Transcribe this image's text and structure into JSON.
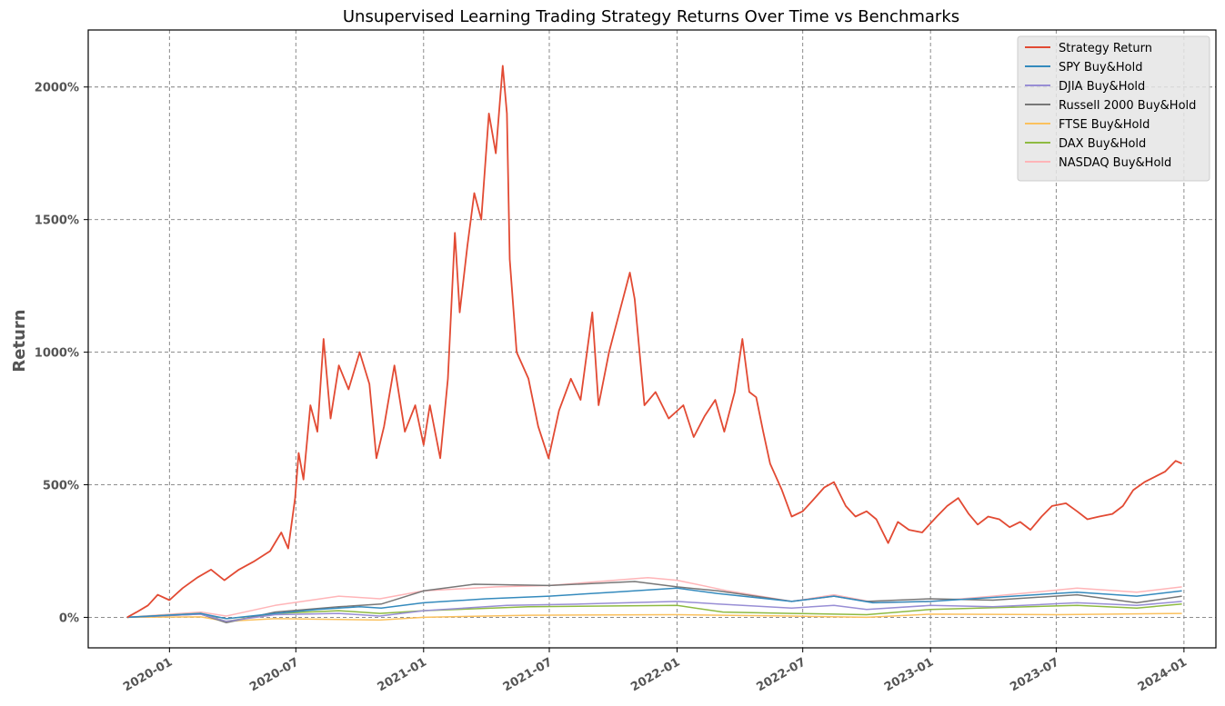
{
  "chart_data": {
    "type": "line",
    "title": "Unsupervised Learning Trading Strategy Returns Over Time vs Benchmarks",
    "xlabel": "",
    "ylabel": "Return",
    "xlim": [
      "2019-09-06",
      "2024-02-16"
    ],
    "ylim": [
      -115,
      2215
    ],
    "x_ticks": [
      "2020-01",
      "2020-07",
      "2021-01",
      "2021-07",
      "2022-01",
      "2022-07",
      "2023-01",
      "2023-07",
      "2024-01"
    ],
    "y_ticks": [
      0,
      500,
      1000,
      1500,
      2000
    ],
    "y_tick_labels": [
      "0%",
      "500%",
      "1000%",
      "1500%",
      "2000%"
    ],
    "grid": true,
    "legend_position": "top-right",
    "series": [
      {
        "name": "Strategy Return",
        "color": "#E24A33",
        "points": [
          [
            "2019-11-01",
            0
          ],
          [
            "2019-11-15",
            20
          ],
          [
            "2019-12-01",
            45
          ],
          [
            "2019-12-15",
            85
          ],
          [
            "2020-01-01",
            65
          ],
          [
            "2020-01-20",
            110
          ],
          [
            "2020-02-10",
            150
          ],
          [
            "2020-03-01",
            180
          ],
          [
            "2020-03-20",
            140
          ],
          [
            "2020-04-10",
            180
          ],
          [
            "2020-05-01",
            210
          ],
          [
            "2020-05-25",
            250
          ],
          [
            "2020-06-10",
            320
          ],
          [
            "2020-06-20",
            260
          ],
          [
            "2020-06-30",
            450
          ],
          [
            "2020-07-05",
            620
          ],
          [
            "2020-07-12",
            520
          ],
          [
            "2020-07-22",
            800
          ],
          [
            "2020-08-01",
            700
          ],
          [
            "2020-08-10",
            1050
          ],
          [
            "2020-08-20",
            750
          ],
          [
            "2020-09-01",
            950
          ],
          [
            "2020-09-15",
            860
          ],
          [
            "2020-10-01",
            1000
          ],
          [
            "2020-10-15",
            880
          ],
          [
            "2020-10-25",
            600
          ],
          [
            "2020-11-05",
            720
          ],
          [
            "2020-11-20",
            950
          ],
          [
            "2020-12-05",
            700
          ],
          [
            "2020-12-20",
            800
          ],
          [
            "2021-01-01",
            650
          ],
          [
            "2021-01-10",
            800
          ],
          [
            "2021-01-25",
            600
          ],
          [
            "2021-02-05",
            900
          ],
          [
            "2021-02-15",
            1450
          ],
          [
            "2021-02-22",
            1150
          ],
          [
            "2021-03-05",
            1400
          ],
          [
            "2021-03-15",
            1600
          ],
          [
            "2021-03-25",
            1500
          ],
          [
            "2021-04-05",
            1900
          ],
          [
            "2021-04-15",
            1750
          ],
          [
            "2021-04-25",
            2080
          ],
          [
            "2021-05-01",
            1900
          ],
          [
            "2021-05-05",
            1350
          ],
          [
            "2021-05-15",
            1000
          ],
          [
            "2021-06-01",
            900
          ],
          [
            "2021-06-15",
            720
          ],
          [
            "2021-06-30",
            600
          ],
          [
            "2021-07-15",
            780
          ],
          [
            "2021-08-01",
            900
          ],
          [
            "2021-08-15",
            820
          ],
          [
            "2021-09-01",
            1150
          ],
          [
            "2021-09-10",
            800
          ],
          [
            "2021-09-25",
            1000
          ],
          [
            "2021-10-10",
            1150
          ],
          [
            "2021-10-25",
            1300
          ],
          [
            "2021-11-01",
            1200
          ],
          [
            "2021-11-15",
            800
          ],
          [
            "2021-12-01",
            850
          ],
          [
            "2021-12-20",
            750
          ],
          [
            "2022-01-10",
            800
          ],
          [
            "2022-01-25",
            680
          ],
          [
            "2022-02-10",
            760
          ],
          [
            "2022-02-25",
            820
          ],
          [
            "2022-03-10",
            700
          ],
          [
            "2022-03-25",
            850
          ],
          [
            "2022-04-05",
            1050
          ],
          [
            "2022-04-15",
            850
          ],
          [
            "2022-04-25",
            830
          ],
          [
            "2022-05-05",
            700
          ],
          [
            "2022-05-15",
            580
          ],
          [
            "2022-06-01",
            480
          ],
          [
            "2022-06-15",
            380
          ],
          [
            "2022-07-01",
            400
          ],
          [
            "2022-07-15",
            440
          ],
          [
            "2022-08-01",
            490
          ],
          [
            "2022-08-15",
            510
          ],
          [
            "2022-09-01",
            420
          ],
          [
            "2022-09-15",
            380
          ],
          [
            "2022-10-01",
            400
          ],
          [
            "2022-10-15",
            370
          ],
          [
            "2022-11-01",
            280
          ],
          [
            "2022-11-15",
            360
          ],
          [
            "2022-12-01",
            330
          ],
          [
            "2022-12-20",
            320
          ],
          [
            "2023-01-10",
            380
          ],
          [
            "2023-01-25",
            420
          ],
          [
            "2023-02-10",
            450
          ],
          [
            "2023-02-25",
            390
          ],
          [
            "2023-03-10",
            350
          ],
          [
            "2023-03-25",
            380
          ],
          [
            "2023-04-10",
            370
          ],
          [
            "2023-04-25",
            340
          ],
          [
            "2023-05-10",
            360
          ],
          [
            "2023-05-25",
            330
          ],
          [
            "2023-06-10",
            380
          ],
          [
            "2023-06-25",
            420
          ],
          [
            "2023-07-15",
            430
          ],
          [
            "2023-07-31",
            400
          ],
          [
            "2023-08-15",
            370
          ],
          [
            "2023-09-01",
            380
          ],
          [
            "2023-09-20",
            390
          ],
          [
            "2023-10-05",
            420
          ],
          [
            "2023-10-20",
            480
          ],
          [
            "2023-11-05",
            510
          ],
          [
            "2023-11-20",
            530
          ],
          [
            "2023-12-05",
            550
          ],
          [
            "2023-12-20",
            590
          ],
          [
            "2023-12-29",
            580
          ]
        ]
      },
      {
        "name": "SPY Buy&Hold",
        "color": "#348ABD",
        "points": [
          [
            "2019-11-01",
            0
          ],
          [
            "2020-02-15",
            15
          ],
          [
            "2020-03-23",
            -5
          ],
          [
            "2020-06-01",
            15
          ],
          [
            "2020-08-01",
            30
          ],
          [
            "2020-10-01",
            40
          ],
          [
            "2020-11-01",
            35
          ],
          [
            "2021-01-01",
            55
          ],
          [
            "2021-04-01",
            70
          ],
          [
            "2021-07-01",
            80
          ],
          [
            "2021-10-01",
            95
          ],
          [
            "2022-01-01",
            110
          ],
          [
            "2022-03-01",
            90
          ],
          [
            "2022-06-15",
            60
          ],
          [
            "2022-08-15",
            80
          ],
          [
            "2022-10-10",
            55
          ],
          [
            "2023-01-01",
            60
          ],
          [
            "2023-04-01",
            75
          ],
          [
            "2023-07-31",
            95
          ],
          [
            "2023-10-25",
            80
          ],
          [
            "2023-12-29",
            100
          ]
        ]
      },
      {
        "name": "DJIA Buy&Hold",
        "color": "#988ED5",
        "points": [
          [
            "2019-11-01",
            0
          ],
          [
            "2020-02-15",
            12
          ],
          [
            "2020-03-23",
            -15
          ],
          [
            "2020-06-01",
            10
          ],
          [
            "2020-09-01",
            15
          ],
          [
            "2020-10-30",
            5
          ],
          [
            "2021-01-01",
            25
          ],
          [
            "2021-05-01",
            45
          ],
          [
            "2021-08-15",
            50
          ],
          [
            "2022-01-01",
            60
          ],
          [
            "2022-03-01",
            50
          ],
          [
            "2022-06-15",
            35
          ],
          [
            "2022-08-15",
            45
          ],
          [
            "2022-10-01",
            30
          ],
          [
            "2023-01-01",
            45
          ],
          [
            "2023-04-01",
            40
          ],
          [
            "2023-07-31",
            55
          ],
          [
            "2023-10-25",
            45
          ],
          [
            "2023-12-29",
            60
          ]
        ]
      },
      {
        "name": "Russell 2000 Buy&Hold",
        "color": "#777777",
        "points": [
          [
            "2019-11-01",
            0
          ],
          [
            "2020-02-15",
            12
          ],
          [
            "2020-03-23",
            -20
          ],
          [
            "2020-06-01",
            20
          ],
          [
            "2020-09-01",
            40
          ],
          [
            "2020-11-01",
            50
          ],
          [
            "2021-01-01",
            100
          ],
          [
            "2021-03-15",
            125
          ],
          [
            "2021-07-01",
            120
          ],
          [
            "2021-11-01",
            135
          ],
          [
            "2022-01-01",
            115
          ],
          [
            "2022-03-01",
            100
          ],
          [
            "2022-06-15",
            60
          ],
          [
            "2022-08-15",
            80
          ],
          [
            "2022-10-01",
            60
          ],
          [
            "2023-01-01",
            70
          ],
          [
            "2023-04-01",
            65
          ],
          [
            "2023-07-31",
            85
          ],
          [
            "2023-10-25",
            55
          ],
          [
            "2023-12-29",
            80
          ]
        ]
      },
      {
        "name": "FTSE Buy&Hold",
        "color": "#FBC15E",
        "points": [
          [
            "2019-11-01",
            0
          ],
          [
            "2020-02-15",
            2
          ],
          [
            "2020-03-23",
            -15
          ],
          [
            "2020-06-01",
            -5
          ],
          [
            "2020-10-30",
            -10
          ],
          [
            "2021-01-01",
            0
          ],
          [
            "2021-06-01",
            8
          ],
          [
            "2022-01-01",
            10
          ],
          [
            "2022-06-15",
            5
          ],
          [
            "2022-10-01",
            0
          ],
          [
            "2023-01-01",
            12
          ],
          [
            "2023-07-01",
            10
          ],
          [
            "2023-12-29",
            15
          ]
        ]
      },
      {
        "name": "DAX Buy&Hold",
        "color": "#8EBA42",
        "points": [
          [
            "2019-11-01",
            0
          ],
          [
            "2020-02-15",
            15
          ],
          [
            "2020-03-23",
            -15
          ],
          [
            "2020-06-01",
            15
          ],
          [
            "2020-09-01",
            25
          ],
          [
            "2020-10-30",
            15
          ],
          [
            "2021-01-01",
            25
          ],
          [
            "2021-06-01",
            40
          ],
          [
            "2022-01-01",
            45
          ],
          [
            "2022-03-08",
            20
          ],
          [
            "2022-06-15",
            15
          ],
          [
            "2022-10-01",
            10
          ],
          [
            "2023-01-01",
            30
          ],
          [
            "2023-07-31",
            45
          ],
          [
            "2023-10-25",
            35
          ],
          [
            "2023-12-29",
            50
          ]
        ]
      },
      {
        "name": "NASDAQ Buy&Hold",
        "color": "#FFB5B8",
        "points": [
          [
            "2019-11-01",
            0
          ],
          [
            "2020-02-15",
            20
          ],
          [
            "2020-03-23",
            5
          ],
          [
            "2020-06-01",
            45
          ],
          [
            "2020-09-01",
            80
          ],
          [
            "2020-10-30",
            70
          ],
          [
            "2021-01-01",
            100
          ],
          [
            "2021-04-15",
            115
          ],
          [
            "2021-07-01",
            120
          ],
          [
            "2021-11-20",
            150
          ],
          [
            "2022-01-01",
            140
          ],
          [
            "2022-03-15",
            100
          ],
          [
            "2022-06-15",
            60
          ],
          [
            "2022-08-15",
            85
          ],
          [
            "2022-10-15",
            55
          ],
          [
            "2023-01-01",
            60
          ],
          [
            "2023-04-01",
            80
          ],
          [
            "2023-07-31",
            110
          ],
          [
            "2023-10-25",
            95
          ],
          [
            "2023-12-29",
            115
          ]
        ]
      }
    ]
  }
}
